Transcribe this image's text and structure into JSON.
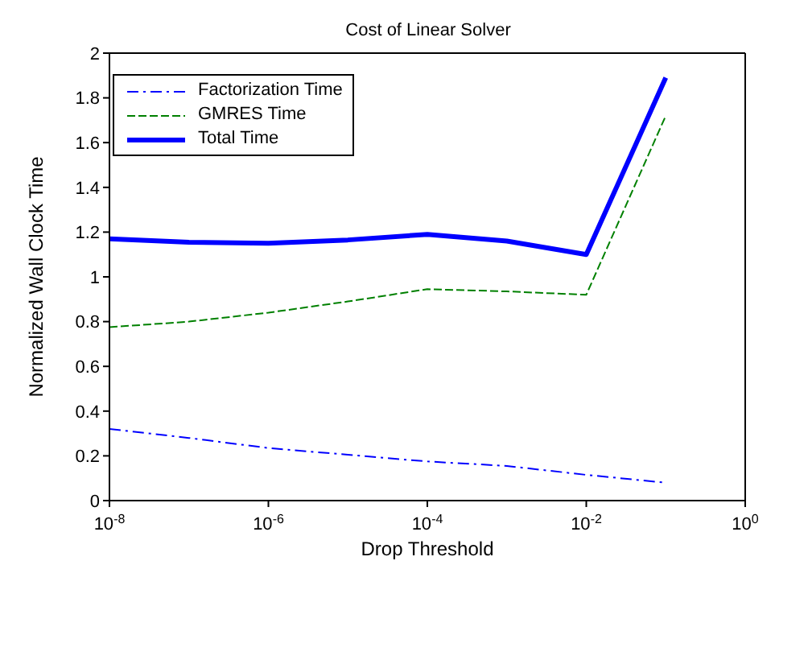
{
  "chart_data": {
    "type": "line",
    "title": "Cost of Linear Solver",
    "xlabel": "Drop Threshold",
    "ylabel": "Normalized Wall Clock Time",
    "log": "x",
    "x": [
      1e-08,
      1e-07,
      1e-06,
      1e-05,
      0.0001,
      0.001,
      0.01,
      0.1
    ],
    "xlim": [
      1e-08,
      1
    ],
    "xticks": [
      {
        "value": 1e-08,
        "label": "10$^{-8}$"
      },
      {
        "value": 1e-06,
        "label": "10$^{-6}$"
      },
      {
        "value": 0.0001,
        "label": "10$^{-4}$"
      },
      {
        "value": 0.01,
        "label": "10$^{-2}$"
      },
      {
        "value": 1,
        "label": "10$^{0}$"
      }
    ],
    "ylim": [
      0,
      2
    ],
    "yticks": [
      0,
      0.2,
      0.4,
      0.6,
      0.8,
      1,
      1.2,
      1.4,
      1.6,
      1.8,
      2
    ],
    "grid": false,
    "legend": "top left",
    "marker": "none",
    "series": [
      {
        "name": "Factorization Time",
        "color": "#0000ff",
        "line_style": "dashdot",
        "values": [
          0.32,
          0.28,
          0.235,
          0.205,
          0.175,
          0.155,
          0.115,
          0.08
        ]
      },
      {
        "name": "GMRES Time",
        "color": "#008000",
        "line_style": "dashed",
        "values": [
          0.775,
          0.8,
          0.84,
          0.89,
          0.945,
          0.935,
          0.92,
          1.72
        ]
      },
      {
        "name": "Total Time",
        "color": "#0000ff",
        "line_style": "solid",
        "values": [
          1.17,
          1.155,
          1.15,
          1.165,
          1.19,
          1.16,
          1.1,
          1.89
        ]
      }
    ]
  }
}
